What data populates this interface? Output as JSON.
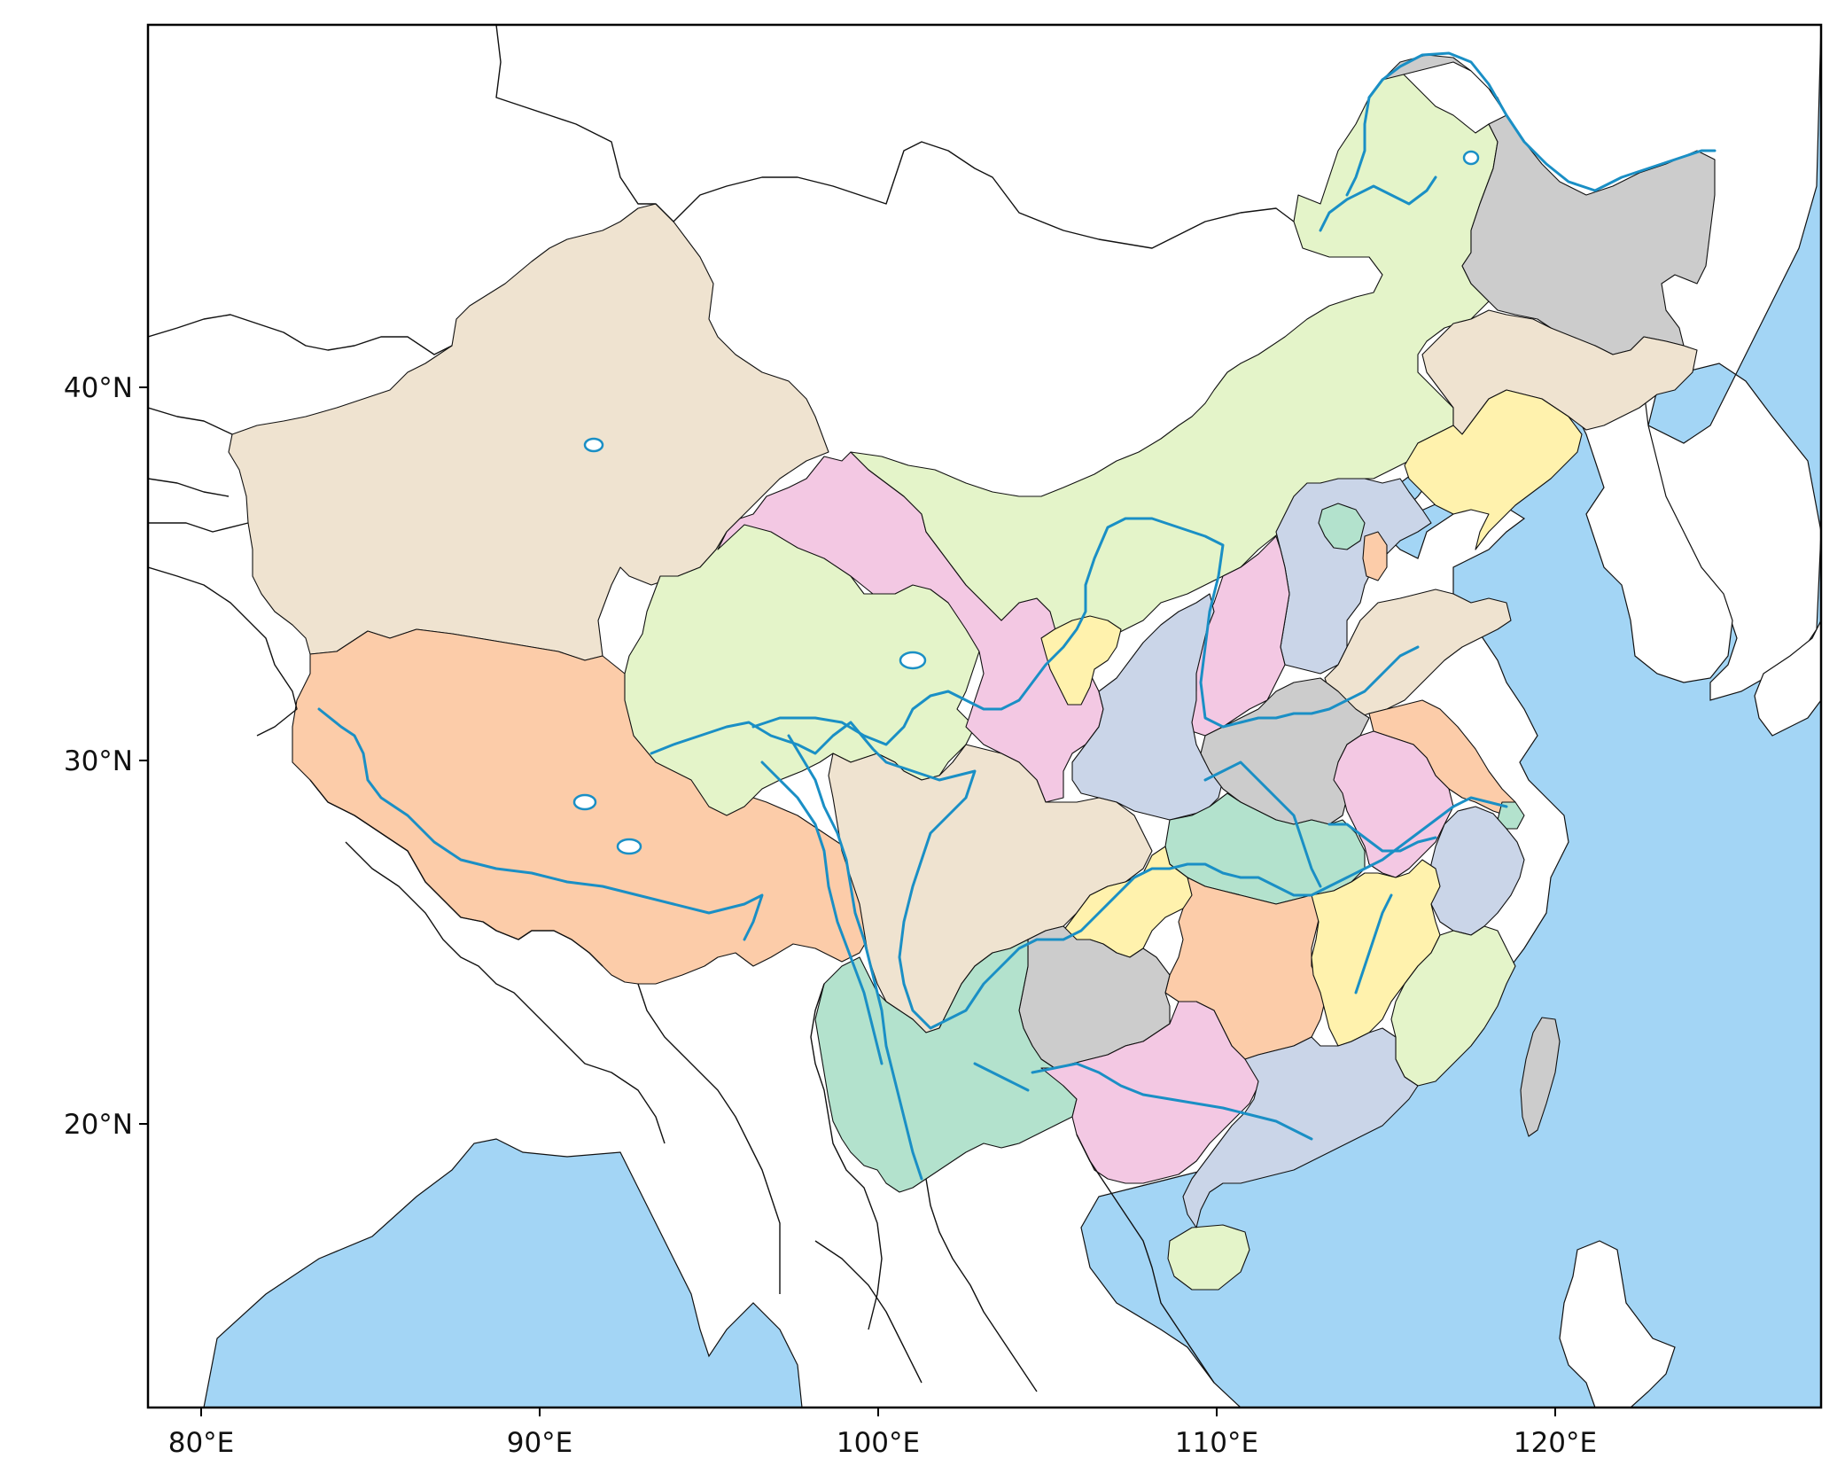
{
  "map": {
    "x_ticks": [
      {
        "value": 80,
        "label": "80°E"
      },
      {
        "value": 90,
        "label": "90°E"
      },
      {
        "value": 100,
        "label": "100°E"
      },
      {
        "value": 110,
        "label": "110°E"
      },
      {
        "value": 120,
        "label": "120°E"
      }
    ],
    "y_ticks": [
      {
        "value": 40,
        "label": "40°N"
      },
      {
        "value": 30,
        "label": "30°N"
      },
      {
        "value": 20,
        "label": "20°N"
      }
    ],
    "colors": {
      "sea": "#a3d5f5",
      "river": "#1a8fc5",
      "beige": "#efe3d0",
      "peach": "#fccca9",
      "light_green": "#e4f4c9",
      "pink": "#f3c8e3",
      "lavender": "#cad5e8",
      "mint": "#b3e2cd",
      "yellow": "#fff2ad",
      "gray": "#cccccc"
    }
  }
}
